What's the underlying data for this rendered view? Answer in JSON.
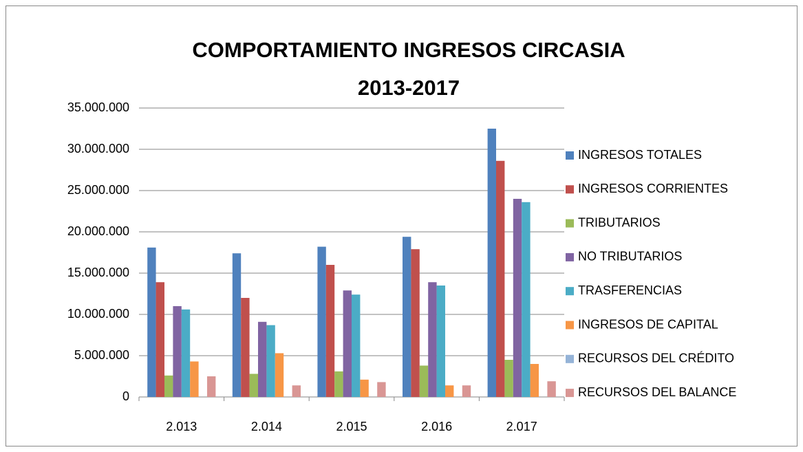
{
  "chart_data": {
    "type": "bar",
    "title": "COMPORTAMIENTO INGRESOS CIRCASIA",
    "subtitle": "2013-2017",
    "categories": [
      "2.013",
      "2.014",
      "2.015",
      "2.016",
      "2.017"
    ],
    "series": [
      {
        "name": "INGRESOS TOTALES",
        "color": "#4f81bd",
        "values": [
          18100000,
          17400000,
          18200000,
          19400000,
          32500000
        ]
      },
      {
        "name": "INGRESOS CORRIENTES",
        "color": "#c0504d",
        "values": [
          13900000,
          12000000,
          16000000,
          17900000,
          28600000
        ]
      },
      {
        "name": "TRIBUTARIOS",
        "color": "#9bbb59",
        "values": [
          2600000,
          2800000,
          3100000,
          3800000,
          4500000
        ]
      },
      {
        "name": "NO TRIBUTARIOS",
        "color": "#8064a2",
        "values": [
          11000000,
          9100000,
          12900000,
          13900000,
          24000000
        ]
      },
      {
        "name": "TRASFERENCIAS",
        "color": "#4bacc6",
        "values": [
          10600000,
          8700000,
          12400000,
          13500000,
          23600000
        ]
      },
      {
        "name": "INGRESOS DE CAPITAL",
        "color": "#f79646",
        "values": [
          4300000,
          5300000,
          2100000,
          1400000,
          4000000
        ]
      },
      {
        "name": "RECURSOS DEL CRÉDITO",
        "color": "#95b3d7",
        "values": [
          0,
          0,
          0,
          0,
          0
        ]
      },
      {
        "name": "RECURSOS DEL BALANCE",
        "color": "#d99694",
        "values": [
          2500000,
          1400000,
          1800000,
          1400000,
          1900000
        ]
      }
    ],
    "ylim": [
      0,
      35000000
    ],
    "yticks": [
      0,
      {
        "value": 5000000,
        "label": "5.000.000"
      },
      {
        "value": 10000000,
        "label": "10.000.000"
      },
      {
        "value": 15000000,
        "label": "15.000.000"
      },
      {
        "value": 20000000,
        "label": "20.000.000"
      },
      {
        "value": 25000000,
        "label": "25.000.000"
      },
      {
        "value": 30000000,
        "label": "30.000.000"
      },
      {
        "value": 35000000,
        "label": "35.000.000"
      }
    ],
    "grid": true,
    "legend": "right"
  }
}
